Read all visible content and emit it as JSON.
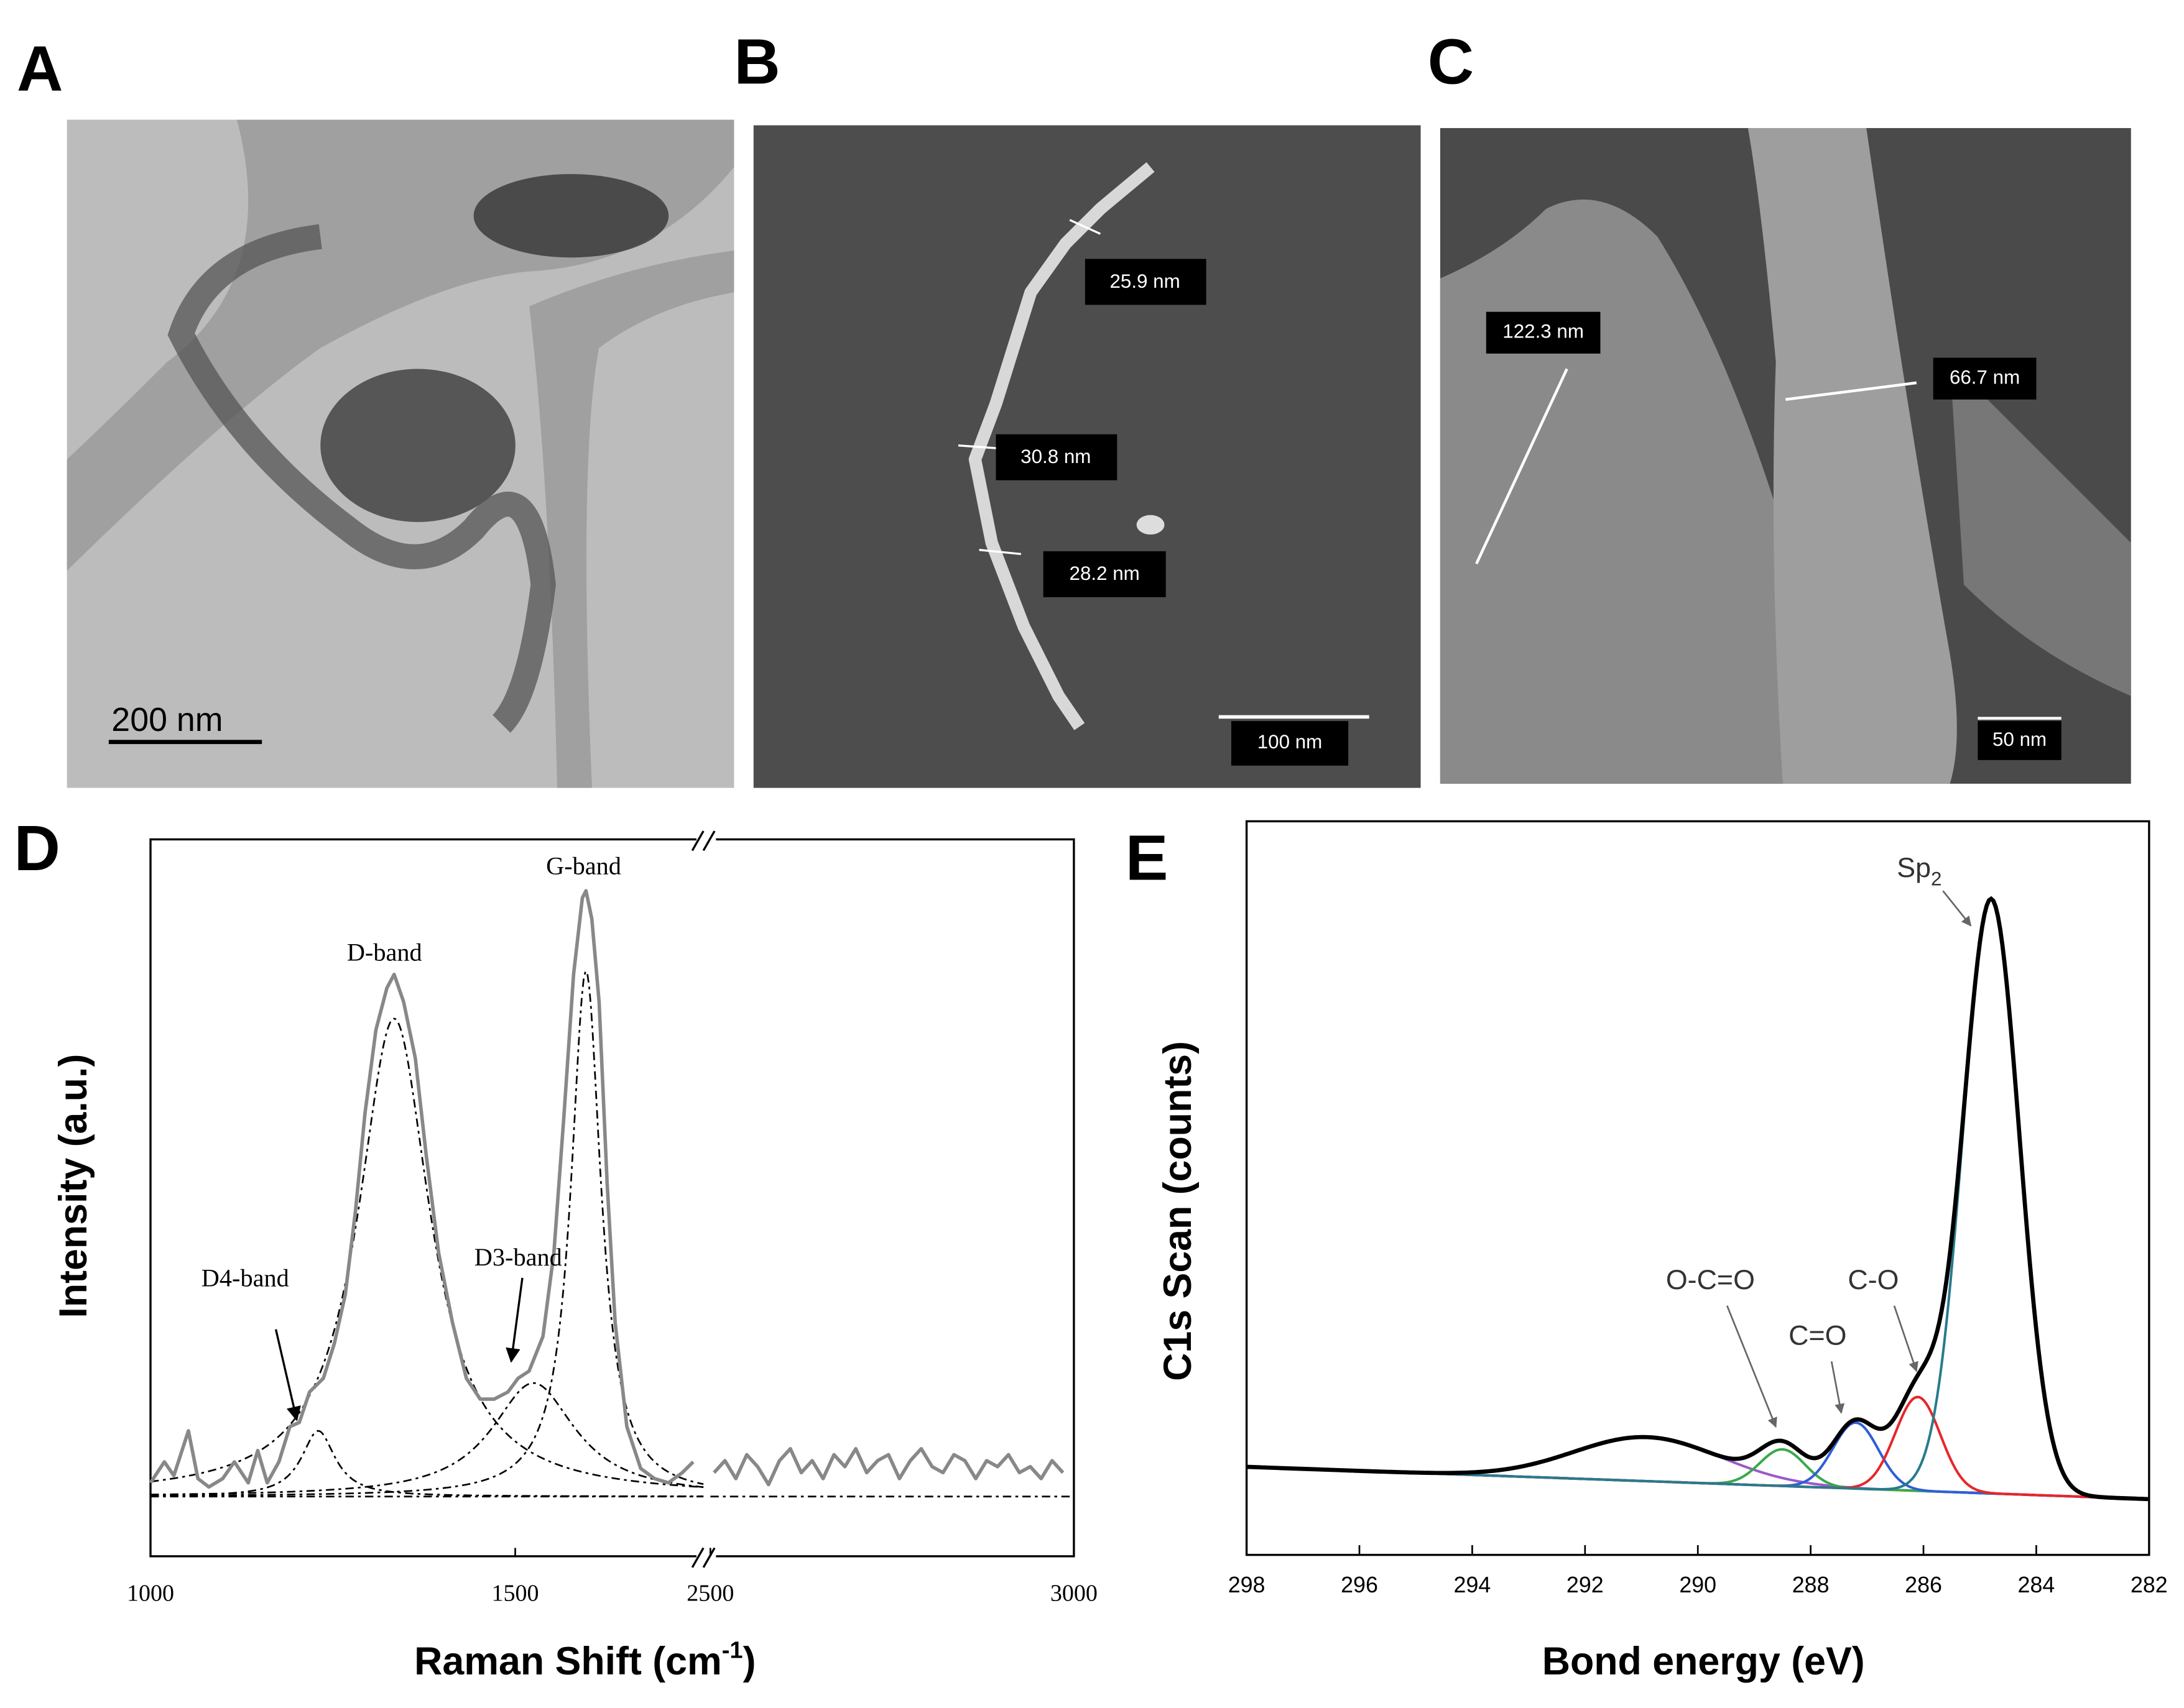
{
  "panel_labels": [
    "A",
    "B",
    "C",
    "D",
    "E"
  ],
  "micrographs": {
    "A": {
      "scale_bar": "200 nm"
    },
    "B": {
      "measurements": [
        "25.9 nm",
        "30.8 nm",
        "28.2 nm"
      ],
      "scale_bar": "100 nm"
    },
    "C": {
      "measurements": [
        "122.3 nm",
        "66.7 nm"
      ],
      "scale_bar": "50 nm"
    }
  },
  "chart_data": [
    {
      "type": "line",
      "ylabel": "Intensity (a.u.)",
      "xlabel_parts": [
        "Raman Shift (cm",
        "-1",
        ")"
      ],
      "x_segments": [
        {
          "xlim": [
            1000,
            1758
          ],
          "xticks": [
            1000,
            1500
          ]
        },
        {
          "xlim": [
            2500,
            3000
          ],
          "xticks": [
            2500,
            3000
          ]
        }
      ],
      "ylim": [
        -10,
        110
      ],
      "series": [
        {
          "color": "#888888",
          "x": [
            1000,
            1019,
            1032,
            1052,
            1065,
            1080,
            1099,
            1115,
            1134,
            1147,
            1160,
            1176,
            1191,
            1204,
            1218,
            1237,
            1252,
            1267,
            1281,
            1294,
            1309,
            1324,
            1334,
            1347,
            1363,
            1378,
            1395,
            1414,
            1433,
            1452,
            1471,
            1490,
            1504,
            1519,
            1538,
            1553,
            1567,
            1580,
            1592,
            1597,
            1605,
            1615,
            1626,
            1637,
            1653,
            1672,
            1691,
            1710,
            1729,
            1744
          ],
          "values": [
            2.3,
            5.8,
            3.5,
            11,
            3,
            1.6,
            3,
            5.8,
            2.3,
            7.7,
            2.3,
            5.8,
            11.7,
            12.4,
            17.5,
            19.8,
            25.6,
            33.8,
            47.8,
            64.1,
            78.1,
            85.1,
            87.4,
            82.8,
            73.4,
            57.1,
            40.8,
            29.1,
            19.8,
            16.3,
            16.3,
            17.5,
            19.8,
            21,
            26.8,
            40.8,
            64.1,
            87.4,
            100.2,
            101.4,
            96.7,
            82.8,
            52.4,
            29.1,
            11.7,
            4.7,
            3,
            2.3,
            4,
            5.8
          ]
        },
        {
          "color": "#888888",
          "x": [
            2505,
            2520,
            2535,
            2550,
            2565,
            2580,
            2595,
            2610,
            2625,
            2640,
            2655,
            2670,
            2685,
            2700,
            2715,
            2730,
            2745,
            2760,
            2775,
            2790,
            2805,
            2820,
            2835,
            2850,
            2865,
            2880,
            2895,
            2910,
            2925,
            2940,
            2955,
            2970,
            2985
          ],
          "values": [
            4,
            6,
            3,
            7,
            5,
            2,
            6,
            8,
            4,
            6,
            3,
            7,
            5,
            8,
            4,
            6,
            7,
            3,
            6,
            8,
            5,
            4,
            7,
            6,
            3,
            6,
            5,
            7,
            4,
            5,
            3,
            6,
            4
          ]
        }
      ],
      "peaks": [
        {
          "label": "D4-band",
          "center": 1230,
          "height": 11,
          "hwhm": 28
        },
        {
          "label": "D-band",
          "center": 1334,
          "height": 80,
          "hwhm": 60
        },
        {
          "label": "D3-band",
          "center": 1525,
          "height": 19,
          "hwhm": 70
        },
        {
          "label": "G-band",
          "center": 1597,
          "height": 88,
          "hwhm": 25
        }
      ]
    },
    {
      "type": "line",
      "xlabel": "Bond energy (eV)",
      "ylabel": "C1s Scan (counts)",
      "xlim": [
        298,
        282
      ],
      "xticks": [
        298,
        296,
        294,
        292,
        290,
        288,
        286,
        284,
        282
      ],
      "ylim": [
        0,
        100
      ],
      "background": {
        "x": [
          298,
          282
        ],
        "values": [
          12,
          7.6
        ]
      },
      "envelope_color": "#000000",
      "peaks": [
        {
          "label_parts": [
            "Sp",
            "2"
          ],
          "center": 284.8,
          "height": 81,
          "sigma": 0.5,
          "color": "#2a7a8c"
        },
        {
          "label": "C-O",
          "center": 286.1,
          "height": 12.8,
          "sigma": 0.4,
          "color": "#e8262a"
        },
        {
          "label": "C=O",
          "center": 287.2,
          "height": 9,
          "sigma": 0.4,
          "color": "#2f5fd6"
        },
        {
          "label": "O-C=O",
          "center": 288.5,
          "height": 5,
          "sigma": 0.4,
          "color": "#3aa84a"
        },
        {
          "center": 290.9,
          "height": 6,
          "sigma": 1.3,
          "color": "#9b59c9"
        }
      ]
    }
  ]
}
